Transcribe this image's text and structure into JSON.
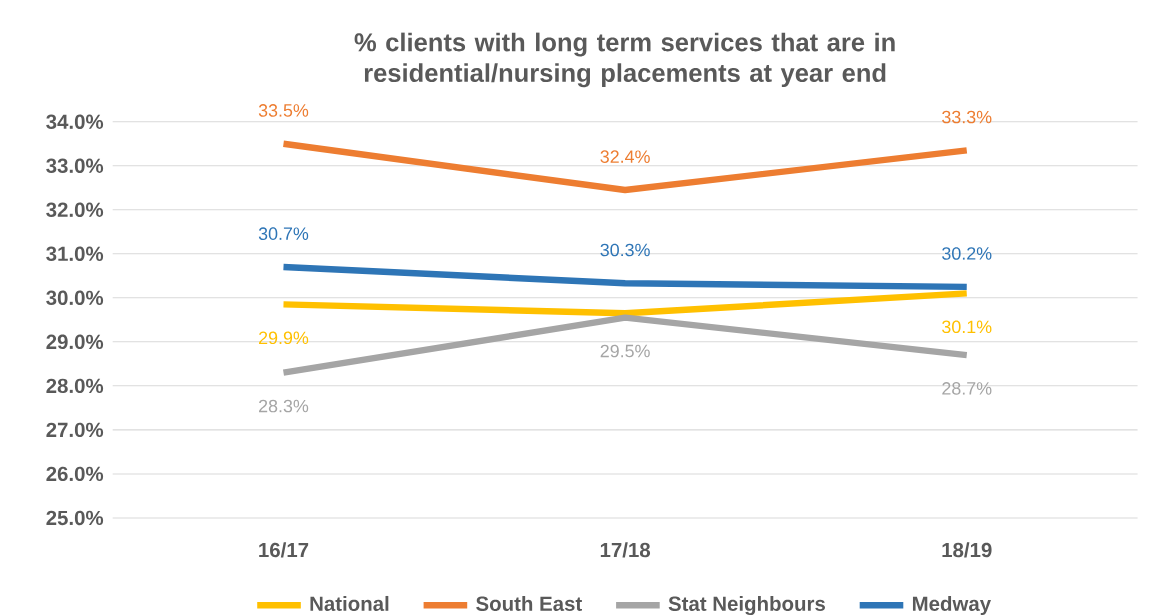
{
  "chart_data": {
    "type": "line",
    "title": "% clients with long term services that are in residential/nursing placements at year end",
    "categories": [
      "16/17",
      "17/18",
      "18/19"
    ],
    "series": [
      {
        "name": "National",
        "color": "#ffc000",
        "values": [
          29.85,
          29.65,
          30.1
        ],
        "value_labels": [
          "29.9%",
          null,
          "30.1%"
        ]
      },
      {
        "name": "South East",
        "color": "#ed7d31",
        "values": [
          33.5,
          32.45,
          33.35
        ],
        "value_labels": [
          "33.5%",
          "32.4%",
          "33.3%"
        ]
      },
      {
        "name": "Stat Neighbours",
        "color": "#a5a5a5",
        "values": [
          28.3,
          29.55,
          28.7
        ],
        "value_labels": [
          "28.3%",
          "29.5%",
          "28.7%"
        ]
      },
      {
        "name": "Medway",
        "color": "#2e75b6",
        "values": [
          30.7,
          30.33,
          30.25
        ],
        "value_labels": [
          "30.7%",
          "30.3%",
          "30.2%"
        ]
      }
    ],
    "ylim": [
      25,
      34
    ],
    "yticks": [
      {
        "value": 25,
        "label": "25.0%"
      },
      {
        "value": 26,
        "label": "26.0%"
      },
      {
        "value": 27,
        "label": "27.0%"
      },
      {
        "value": 28,
        "label": "28.0%"
      },
      {
        "value": 29,
        "label": "29.0%"
      },
      {
        "value": 30,
        "label": "30.0%"
      },
      {
        "value": 31,
        "label": "31.0%"
      },
      {
        "value": 32,
        "label": "32.0%"
      },
      {
        "value": 33,
        "label": "33.0%"
      },
      {
        "value": 34,
        "label": "34.0%"
      }
    ],
    "grid": "y",
    "legend": "bottom",
    "marker": "none",
    "line_style": "solid"
  }
}
